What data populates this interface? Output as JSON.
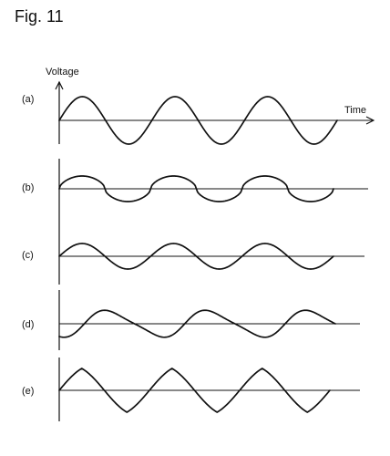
{
  "figure": {
    "title": "Fig. 11",
    "y_axis_label": "Voltage",
    "x_axis_label": "Time",
    "panels": [
      {
        "label": "(a)",
        "shape": "sine",
        "amplitude": 1.0,
        "cycles": 3,
        "start_phase": "zero-crossing"
      },
      {
        "label": "(b)",
        "shape": "flattened-sine",
        "amplitude": 0.55,
        "cycles": 3,
        "start_phase": "zero-crossing"
      },
      {
        "label": "(c)",
        "shape": "sine",
        "amplitude": 0.55,
        "cycles": 3,
        "start_phase": "zero-crossing"
      },
      {
        "label": "(d)",
        "shape": "distorted-sine",
        "amplitude": 0.55,
        "cycles": 2.75,
        "start_phase": "trough"
      },
      {
        "label": "(e)",
        "shape": "triangle-like",
        "amplitude": 1.0,
        "cycles": 3,
        "start_phase": "zero-crossing"
      }
    ]
  }
}
